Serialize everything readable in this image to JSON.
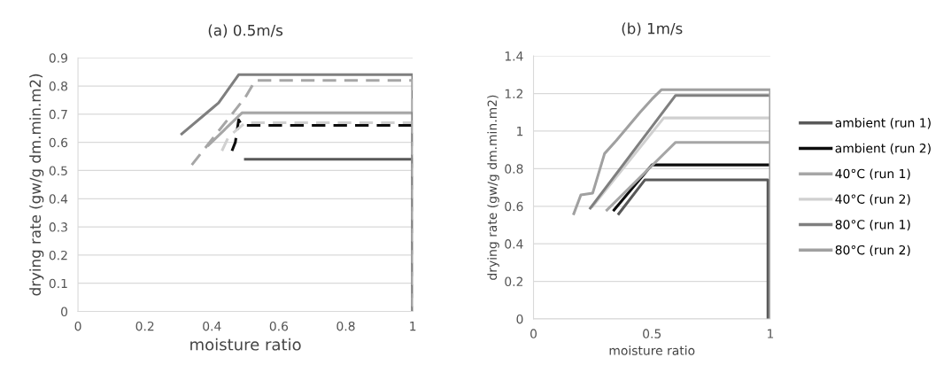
{
  "chart_data": [
    {
      "type": "line",
      "title": "(a) 0.5m/s",
      "xlabel": "moisture ratio",
      "ylabel": "drying rate (gw/g dm.min.m2)",
      "xlim": [
        0,
        1
      ],
      "ylim": [
        0,
        0.9
      ],
      "xticks": [
        0,
        0.2,
        0.4,
        0.6,
        0.8,
        1
      ],
      "yticks": [
        0,
        0.1,
        0.2,
        0.3,
        0.4,
        0.5,
        0.6,
        0.7,
        0.8,
        0.9
      ],
      "grid": "y",
      "legend": false,
      "series": [
        {
          "color": "#595959",
          "line_style": "solid",
          "x": [
            0.5,
            1,
            1
          ],
          "values": [
            0.54,
            0.54,
            0
          ]
        },
        {
          "color": "#0d0d0d",
          "line_style": "dashed",
          "x": [
            0.46,
            0.47,
            0.48,
            0.49,
            1,
            1
          ],
          "values": [
            0.57,
            0.6,
            0.68,
            0.66,
            0.66,
            0
          ]
        },
        {
          "color": "#a6a6a6",
          "line_style": "solid",
          "x": [
            0.39,
            0.49,
            1,
            1
          ],
          "values": [
            0.59,
            0.705,
            0.705,
            0
          ]
        },
        {
          "color": "#d0d0d0",
          "line_style": "dashed",
          "x": [
            0.43,
            0.45,
            0.5,
            1,
            1
          ],
          "values": [
            0.57,
            0.62,
            0.67,
            0.67,
            0
          ]
        },
        {
          "color": "#7f7f7f",
          "line_style": "solid",
          "x": [
            0.31,
            0.4,
            0.42,
            0.48,
            1,
            1
          ],
          "values": [
            0.63,
            0.72,
            0.74,
            0.84,
            0.84,
            0
          ]
        },
        {
          "color": "#a6a6a6",
          "line_style": "dashed",
          "x": [
            0.34,
            0.5,
            0.53,
            1,
            1
          ],
          "values": [
            0.52,
            0.76,
            0.82,
            0.82,
            0
          ]
        }
      ]
    },
    {
      "type": "line",
      "title": "(b) 1m/s",
      "xlabel": "moisture ratio",
      "ylabel": "drying rate (gw/g dm.min.m2)",
      "xlim": [
        0,
        1
      ],
      "ylim": [
        0,
        1.4
      ],
      "xticks": [
        0,
        0.5,
        1
      ],
      "yticks": [
        0,
        0.2,
        0.4,
        0.6,
        0.8,
        1,
        1.2,
        1.4
      ],
      "grid": "y",
      "legend": "right",
      "series": [
        {
          "name": "ambient (run 1)",
          "color": "#595959",
          "line_style": "solid",
          "x": [
            0.36,
            0.47,
            0.99,
            0.99
          ],
          "values": [
            0.56,
            0.74,
            0.74,
            0
          ]
        },
        {
          "name": "ambient (run 2)",
          "color": "#0d0d0d",
          "line_style": "solid",
          "x": [
            0.34,
            0.5,
            0.99
          ],
          "values": [
            0.58,
            0.82,
            0.82
          ]
        },
        {
          "name": "40°C (run 1)",
          "color": "#a6a6a6",
          "line_style": "solid",
          "x": [
            0.31,
            0.6,
            0.99
          ],
          "values": [
            0.58,
            0.94,
            0.94
          ]
        },
        {
          "name": "40°C (run 2)",
          "color": "#d0d0d0",
          "line_style": "solid",
          "x": [
            0.25,
            0.55,
            0.99
          ],
          "values": [
            0.6,
            1.07,
            1.07
          ]
        },
        {
          "name": "80°C (run 1)",
          "color": "#7f7f7f",
          "line_style": "solid",
          "x": [
            0.24,
            0.6,
            0.99
          ],
          "values": [
            0.59,
            1.19,
            1.19
          ]
        },
        {
          "name": "80°C (run 2)",
          "color": "#a0a0a0",
          "line_style": "solid",
          "x": [
            0.17,
            0.2,
            0.25,
            0.3,
            0.35,
            0.45,
            0.5,
            0.54,
            1,
            1
          ],
          "values": [
            0.56,
            0.66,
            0.67,
            0.88,
            0.95,
            1.1,
            1.17,
            1.22,
            1.22,
            0
          ]
        }
      ]
    }
  ]
}
